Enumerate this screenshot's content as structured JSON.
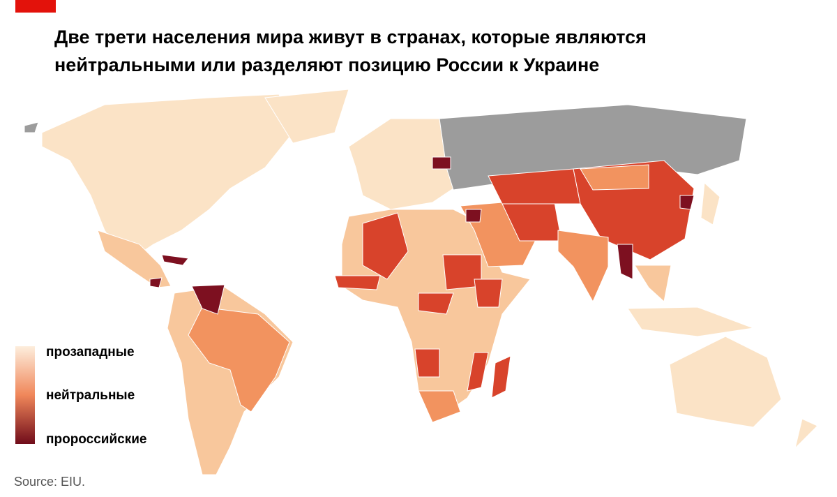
{
  "title": {
    "lines": [
      "Две трети населения мира живут в странах, которые являются",
      "нейтральными или разделяют позицию России к Украине"
    ]
  },
  "legend": {
    "labels": [
      "прозападные",
      "нейтральные",
      "пророссийские"
    ]
  },
  "source": "Source: EIU."
}
